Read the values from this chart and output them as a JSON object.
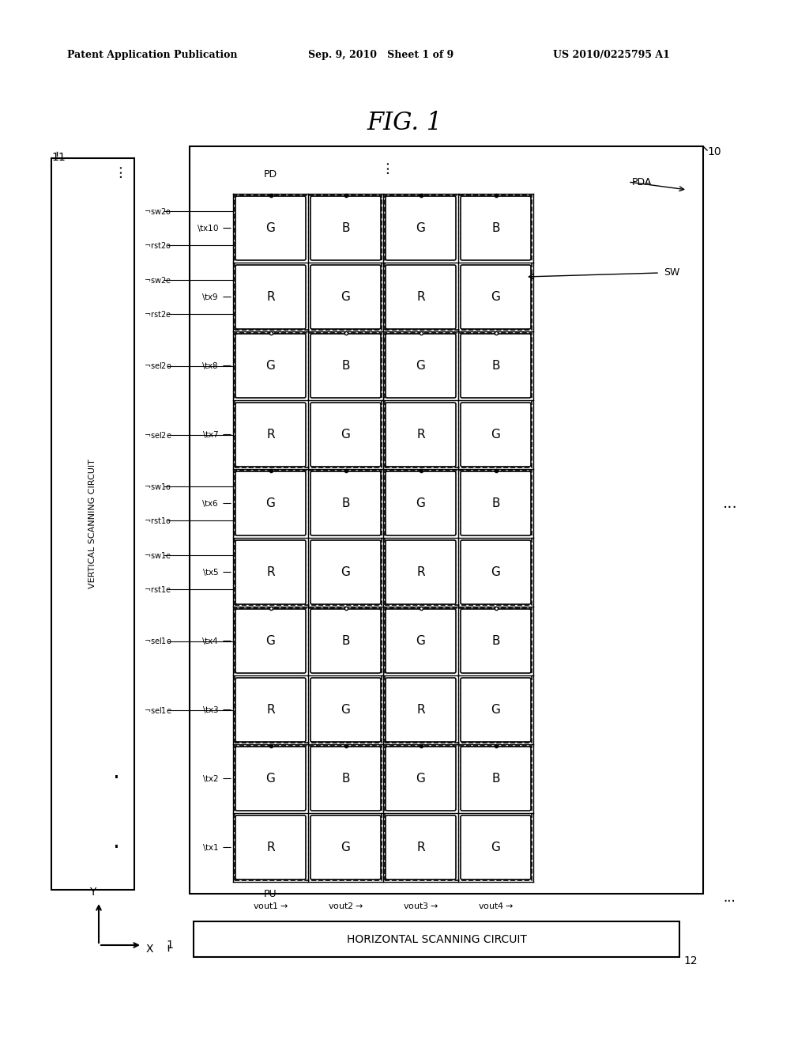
{
  "title": "FIG. 1",
  "header_left": "Patent Application Publication",
  "header_mid": "Sep. 9, 2010   Sheet 1 of 9",
  "header_right": "US 2010/0225795 A1",
  "bg_color": "#ffffff",
  "text_color": "#000000",
  "label_10": "10",
  "label_11": "11",
  "label_12": "12",
  "label_1": "1",
  "label_PDA": "PDA",
  "label_PD": "PD",
  "label_PU": "PU",
  "label_SW": "SW",
  "label_VERTICAL": "VERTICAL SCANNING CIRCUIT",
  "label_HORIZONTAL": "HORIZONTAL SCANNING CIRCUIT",
  "tx_labels": [
    "tx10",
    "tx9",
    "tx8",
    "tx7",
    "tx6",
    "tx5",
    "tx4",
    "tx3",
    "tx2",
    "tx1"
  ],
  "left_labels": [
    "sw2o",
    "rst2o",
    "sw2e",
    "rst2e",
    "sel2o",
    "sel2e",
    "sw1o",
    "rst1o",
    "sw1e",
    "rst1e",
    "sel1o",
    "sel1e"
  ],
  "vout_labels": [
    "vout1",
    "vout2",
    "vout3",
    "vout4"
  ],
  "pixel_pattern": [
    [
      "G",
      "B",
      "G",
      "B"
    ],
    [
      "R",
      "G",
      "R",
      "G"
    ],
    [
      "G",
      "B",
      "G",
      "B"
    ],
    [
      "R",
      "G",
      "R",
      "G"
    ],
    [
      "G",
      "B",
      "G",
      "B"
    ],
    [
      "R",
      "G",
      "R",
      "G"
    ],
    [
      "G",
      "B",
      "G",
      "B"
    ],
    [
      "R",
      "G",
      "R",
      "G"
    ],
    [
      "G",
      "B",
      "G",
      "B"
    ],
    [
      "R",
      "G",
      "R",
      "G"
    ]
  ]
}
